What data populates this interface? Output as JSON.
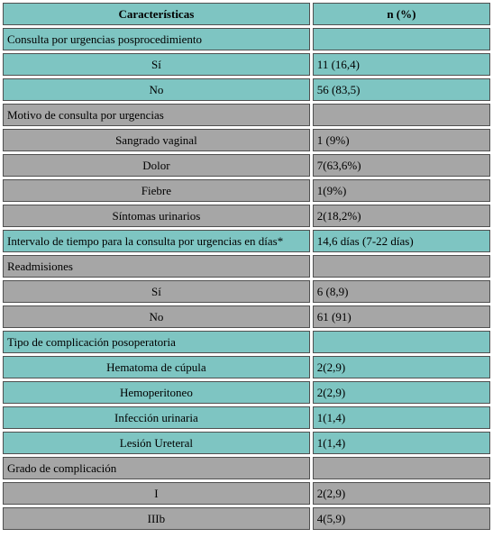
{
  "table": {
    "headers": [
      "Características",
      "n (%)"
    ],
    "rows": [
      {
        "label": "Consulta por urgencias posprocedimiento",
        "value": "",
        "color": "teal",
        "indent": false
      },
      {
        "label": "Sí",
        "value": "11 (16,4)",
        "color": "teal",
        "indent": true
      },
      {
        "label": "No",
        "value": "56 (83,5)",
        "color": "teal",
        "indent": true
      },
      {
        "label": "Motivo de consulta por urgencias",
        "value": "",
        "color": "gray",
        "indent": false
      },
      {
        "label": "Sangrado vaginal",
        "value": "1 (9%)",
        "color": "gray",
        "indent": true
      },
      {
        "label": "Dolor",
        "value": "7(63,6%)",
        "color": "gray",
        "indent": true
      },
      {
        "label": "Fiebre",
        "value": "1(9%)",
        "color": "gray",
        "indent": true
      },
      {
        "label": "Síntomas urinarios",
        "value": "2(18,2%)",
        "color": "gray",
        "indent": true
      },
      {
        "label": "Intervalo de tiempo para la consulta por urgencias en días*",
        "value": "14,6 días (7-22 días)",
        "color": "teal",
        "indent": false
      },
      {
        "label": "Readmisiones",
        "value": "",
        "color": "gray",
        "indent": false
      },
      {
        "label": "Sí",
        "value": "6 (8,9)",
        "color": "gray",
        "indent": true
      },
      {
        "label": "No",
        "value": "61 (91)",
        "color": "gray",
        "indent": true
      },
      {
        "label": "Tipo de complicación posoperatoria",
        "value": "",
        "color": "teal",
        "indent": false
      },
      {
        "label": "Hematoma de cúpula",
        "value": "2(2,9)",
        "color": "teal",
        "indent": true
      },
      {
        "label": "Hemoperitoneo",
        "value": "2(2,9)",
        "color": "teal",
        "indent": true
      },
      {
        "label": "Infección urinaria",
        "value": "1(1,4)",
        "color": "teal",
        "indent": true
      },
      {
        "label": "Lesión Ureteral",
        "value": "1(1,4)",
        "color": "teal",
        "indent": true
      },
      {
        "label": "Grado de complicación",
        "value": "",
        "color": "gray",
        "indent": false
      },
      {
        "label": "I",
        "value": "2(2,9)",
        "color": "gray",
        "indent": true
      },
      {
        "label": "IIIb",
        "value": "4(5,9)",
        "color": "gray",
        "indent": true
      }
    ]
  },
  "colors": {
    "teal": "#7ec5c2",
    "gray": "#a6a6a6",
    "border": "#505050"
  }
}
